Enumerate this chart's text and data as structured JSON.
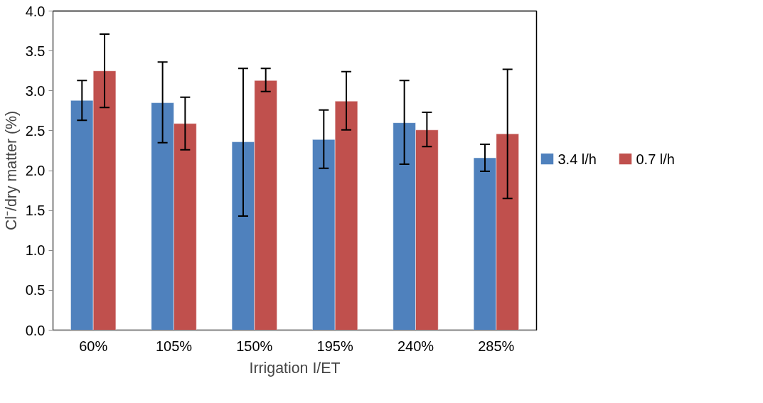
{
  "chart_data": {
    "type": "bar",
    "categories": [
      "60%",
      "105%",
      "150%",
      "195%",
      "240%",
      "285%"
    ],
    "series": [
      {
        "name": "3.4 l/h",
        "color": "#4f81bd",
        "values": [
          2.88,
          2.85,
          2.36,
          2.39,
          2.6,
          2.16
        ],
        "errors": [
          [
            2.63,
            3.13
          ],
          [
            2.35,
            3.36
          ],
          [
            1.43,
            3.28
          ],
          [
            2.03,
            2.76
          ],
          [
            2.08,
            3.13
          ],
          [
            1.99,
            2.33
          ]
        ]
      },
      {
        "name": "0.7 l/h",
        "color": "#c0504d",
        "values": [
          3.25,
          2.59,
          3.13,
          2.87,
          2.51,
          2.46
        ],
        "errors": [
          [
            2.79,
            3.71
          ],
          [
            2.26,
            2.92
          ],
          [
            2.99,
            3.28
          ],
          [
            2.51,
            3.24
          ],
          [
            2.3,
            2.73
          ],
          [
            1.65,
            3.27
          ]
        ]
      }
    ],
    "xlabel": "Irrigation I/ET",
    "ylabel": "Cl⁻/dry matter (%)",
    "ylim": [
      0,
      4
    ],
    "yticks": [
      {
        "value": 0,
        "label": "0.0"
      },
      {
        "value": 0.5,
        "label": "0.5"
      },
      {
        "value": 1,
        "label": "1.0"
      },
      {
        "value": 1.5,
        "label": "1.5"
      },
      {
        "value": 2,
        "label": "2.0"
      },
      {
        "value": 2.5,
        "label": "2.5"
      },
      {
        "value": 3,
        "label": "3.0"
      },
      {
        "value": 3.5,
        "label": "3.5"
      },
      {
        "value": 4,
        "label": "4.0"
      }
    ],
    "grid": false,
    "legend": "right"
  }
}
